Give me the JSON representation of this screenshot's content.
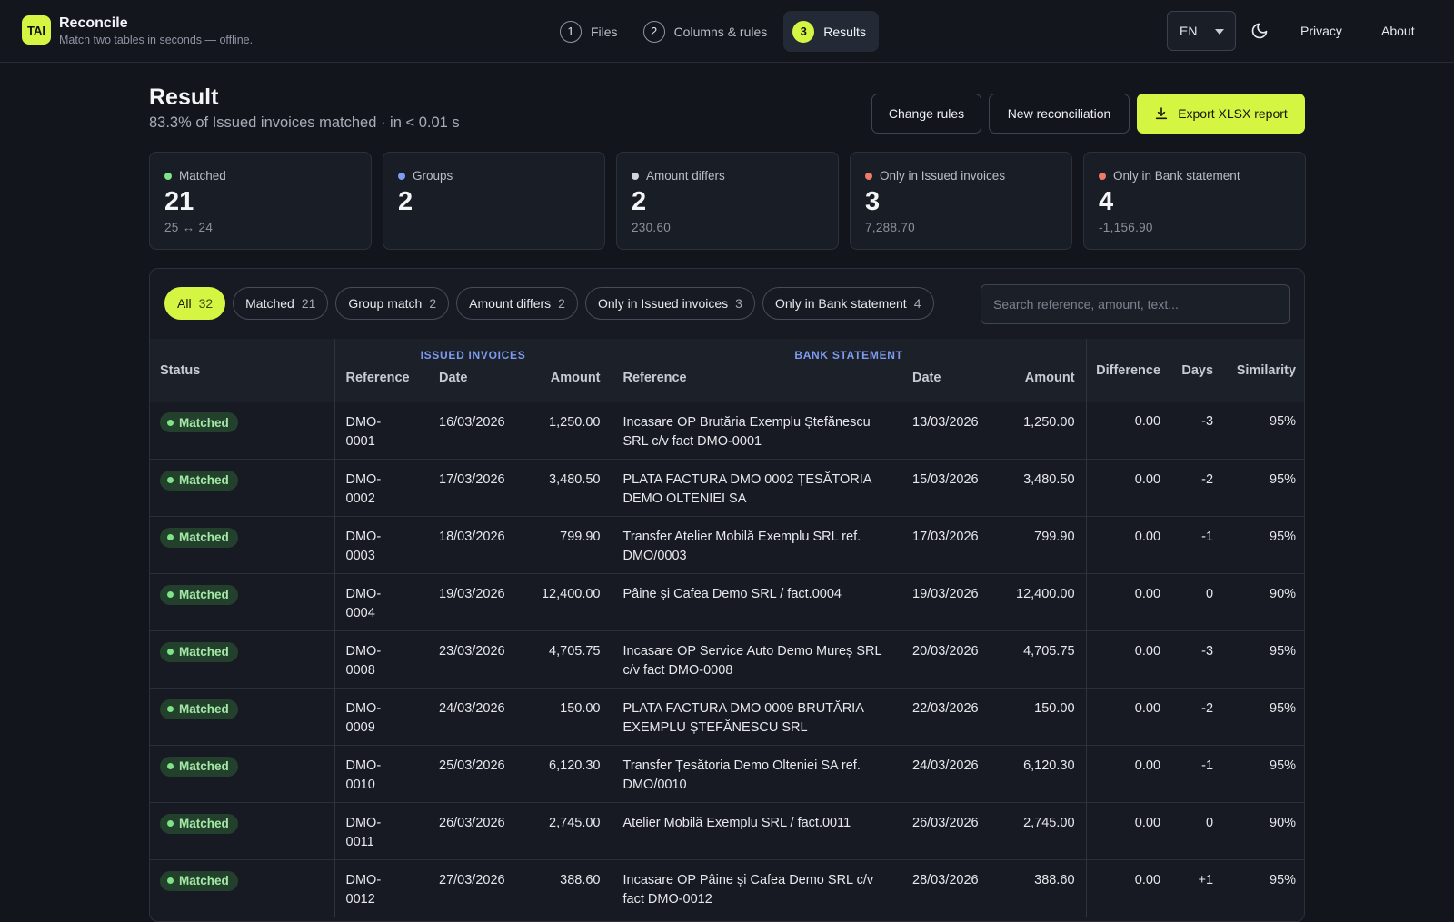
{
  "app": {
    "logo_text": "TAI",
    "name": "Reconcile",
    "tagline": "Match two tables in seconds — offline."
  },
  "steps": [
    {
      "num": "1",
      "label": "Files"
    },
    {
      "num": "2",
      "label": "Columns & rules"
    },
    {
      "num": "3",
      "label": "Results"
    }
  ],
  "nav": {
    "language": "EN",
    "privacy": "Privacy",
    "about": "About",
    "theme_icon": "moon-icon"
  },
  "header": {
    "title": "Result",
    "subtitle": "83.3% of Issued invoices matched · in < 0.01 s",
    "change_rules": "Change rules",
    "new_reconciliation": "New reconciliation",
    "export": "Export XLSX report"
  },
  "stats": [
    {
      "label": "Matched",
      "value": "21",
      "sub": "25 ↔ 24",
      "color": "#7ee487"
    },
    {
      "label": "Groups",
      "value": "2",
      "sub": "",
      "color": "#7f9bf2"
    },
    {
      "label": "Amount differs",
      "value": "2",
      "sub": "230.60",
      "color": "#d0d3d9"
    },
    {
      "label": "Only in Issued invoices",
      "value": "3",
      "sub": "7,288.70",
      "color": "#f07a6a"
    },
    {
      "label": "Only in Bank statement",
      "value": "4",
      "sub": "-1,156.90",
      "color": "#f07a6a"
    }
  ],
  "filters": [
    {
      "label": "All",
      "count": "32"
    },
    {
      "label": "Matched",
      "count": "21"
    },
    {
      "label": "Group match",
      "count": "2"
    },
    {
      "label": "Amount differs",
      "count": "2"
    },
    {
      "label": "Only in Issued invoices",
      "count": "3"
    },
    {
      "label": "Only in Bank statement",
      "count": "4"
    }
  ],
  "search": {
    "placeholder": "Search reference, amount, text..."
  },
  "table": {
    "group_issued": "ISSUED INVOICES",
    "group_bank": "BANK STATEMENT",
    "headers": {
      "status": "Status",
      "ref": "Reference",
      "date": "Date",
      "amount": "Amount",
      "bank_ref": "Reference",
      "bank_date": "Date",
      "bank_amount": "Amount",
      "difference": "Difference",
      "days": "Days",
      "similarity": "Similarity"
    },
    "rows": [
      {
        "status": "Matched",
        "ref": "DMO-\n0001",
        "date": "16/03/2026",
        "amount": "1,250.00",
        "bank_ref": "Incasare OP Brutăria Exemplu Ștefănescu SRL c/v fact DMO-0001",
        "bank_date": "13/03/2026",
        "bank_amount": "1,250.00",
        "difference": "0.00",
        "days": "-3",
        "similarity": "95%"
      },
      {
        "status": "Matched",
        "ref": "DMO-\n0002",
        "date": "17/03/2026",
        "amount": "3,480.50",
        "bank_ref": "PLATA FACTURA DMO 0002 ȚESĂTORIA DEMO OLTENIEI SA",
        "bank_date": "15/03/2026",
        "bank_amount": "3,480.50",
        "difference": "0.00",
        "days": "-2",
        "similarity": "95%"
      },
      {
        "status": "Matched",
        "ref": "DMO-\n0003",
        "date": "18/03/2026",
        "amount": "799.90",
        "bank_ref": "Transfer Atelier Mobilă Exemplu SRL ref. DMO/0003",
        "bank_date": "17/03/2026",
        "bank_amount": "799.90",
        "difference": "0.00",
        "days": "-1",
        "similarity": "95%"
      },
      {
        "status": "Matched",
        "ref": "DMO-\n0004",
        "date": "19/03/2026",
        "amount": "12,400.00",
        "bank_ref": "Pâine și Cafea Demo SRL / fact.0004",
        "bank_date": "19/03/2026",
        "bank_amount": "12,400.00",
        "difference": "0.00",
        "days": "0",
        "similarity": "90%"
      },
      {
        "status": "Matched",
        "ref": "DMO-\n0008",
        "date": "23/03/2026",
        "amount": "4,705.75",
        "bank_ref": "Incasare OP Service Auto Demo Mureș SRL c/v fact DMO-0008",
        "bank_date": "20/03/2026",
        "bank_amount": "4,705.75",
        "difference": "0.00",
        "days": "-3",
        "similarity": "95%"
      },
      {
        "status": "Matched",
        "ref": "DMO-\n0009",
        "date": "24/03/2026",
        "amount": "150.00",
        "bank_ref": "PLATA FACTURA DMO 0009 BRUTĂRIA EXEMPLU ȘTEFĂNESCU SRL",
        "bank_date": "22/03/2026",
        "bank_amount": "150.00",
        "difference": "0.00",
        "days": "-2",
        "similarity": "95%"
      },
      {
        "status": "Matched",
        "ref": "DMO-\n0010",
        "date": "25/03/2026",
        "amount": "6,120.30",
        "bank_ref": "Transfer Țesătoria Demo Olteniei SA ref. DMO/0010",
        "bank_date": "24/03/2026",
        "bank_amount": "6,120.30",
        "difference": "0.00",
        "days": "-1",
        "similarity": "95%"
      },
      {
        "status": "Matched",
        "ref": "DMO-\n0011",
        "date": "26/03/2026",
        "amount": "2,745.00",
        "bank_ref": "Atelier Mobilă Exemplu SRL / fact.0011",
        "bank_date": "26/03/2026",
        "bank_amount": "2,745.00",
        "difference": "0.00",
        "days": "0",
        "similarity": "90%"
      },
      {
        "status": "Matched",
        "ref": "DMO-\n0012",
        "date": "27/03/2026",
        "amount": "388.60",
        "bank_ref": "Incasare OP Pâine și Cafea Demo SRL c/v fact DMO-0012",
        "bank_date": "28/03/2026",
        "bank_amount": "388.60",
        "difference": "0.00",
        "days": "+1",
        "similarity": "95%"
      }
    ]
  }
}
